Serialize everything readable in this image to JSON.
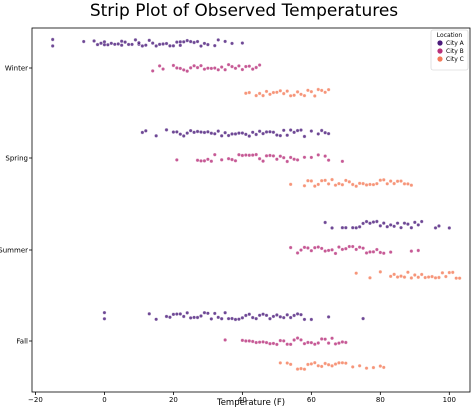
{
  "chart_data": {
    "type": "scatter",
    "subtype": "strip",
    "title": "Strip Plot of Observed Temperatures",
    "xlabel": "Temperature (F)",
    "ylabel": "",
    "xlim": [
      -21,
      106
    ],
    "xticks": [
      -20,
      0,
      20,
      40,
      60,
      80,
      100
    ],
    "categories": [
      "Winter",
      "Spring",
      "Summer",
      "Fall"
    ],
    "legend": {
      "title": "Location",
      "position": "top-right",
      "entries": [
        "City A",
        "City B",
        "City C"
      ]
    },
    "colors": {
      "City A": "#4a1a7a",
      "City B": "#b8307a",
      "City C": "#f47a58"
    },
    "series": [
      {
        "name": "City A",
        "points": {
          "Winter": [
            -15,
            -15,
            -6,
            -3,
            -2,
            -1,
            0,
            0,
            1,
            2,
            3,
            4,
            5,
            5,
            6,
            7,
            8,
            9,
            10,
            10,
            11,
            12,
            13,
            14,
            15,
            16,
            17,
            18,
            19,
            20,
            21,
            22,
            22,
            23,
            24,
            25,
            26,
            27,
            28,
            29,
            30,
            32,
            33,
            35,
            37,
            40
          ],
          "Spring": [
            11,
            12,
            15,
            18,
            20,
            21,
            22,
            23,
            24,
            25,
            26,
            27,
            28,
            29,
            30,
            31,
            32,
            33,
            34,
            35,
            36,
            37,
            38,
            39,
            40,
            41,
            42,
            43,
            44,
            45,
            46,
            47,
            48,
            49,
            50,
            51,
            52,
            53,
            54,
            55,
            56,
            57,
            58,
            60,
            62,
            63,
            64,
            65
          ],
          "Summer": [
            64,
            66,
            69,
            70,
            72,
            73,
            74,
            75,
            76,
            77,
            78,
            79,
            80,
            81,
            82,
            83,
            84,
            85,
            86,
            87,
            88,
            89,
            90,
            91,
            92,
            96,
            97,
            100
          ],
          "Fall": [
            0,
            0,
            13,
            15,
            18,
            19,
            20,
            21,
            22,
            23,
            24,
            25,
            26,
            27,
            28,
            29,
            30,
            31,
            32,
            33,
            34,
            35,
            36,
            37,
            38,
            39,
            40,
            41,
            42,
            43,
            44,
            45,
            46,
            47,
            48,
            49,
            50,
            51,
            52,
            53,
            54,
            55,
            56,
            57,
            58,
            60,
            65,
            75
          ]
        }
      },
      {
        "name": "City B",
        "points": {
          "Winter": [
            14,
            16,
            17,
            20,
            21,
            22,
            23,
            24,
            25,
            26,
            27,
            28,
            29,
            30,
            31,
            32,
            33,
            34,
            35,
            36,
            37,
            38,
            39,
            40,
            41,
            42,
            43,
            44,
            45
          ],
          "Spring": [
            21,
            27,
            28,
            29,
            30,
            31,
            32,
            34,
            36,
            37,
            38,
            39,
            40,
            41,
            42,
            43,
            44,
            45,
            46,
            47,
            48,
            49,
            50,
            51,
            52,
            53,
            54,
            55,
            56,
            58,
            60,
            62,
            64,
            65,
            69
          ],
          "Summer": [
            54,
            56,
            57,
            58,
            59,
            60,
            61,
            62,
            63,
            64,
            65,
            66,
            67,
            68,
            69,
            70,
            71,
            72,
            73,
            74,
            75,
            76,
            77,
            78,
            79,
            80,
            81,
            83,
            89,
            91
          ],
          "Fall": [
            35,
            40,
            41,
            42,
            43,
            44,
            45,
            46,
            47,
            48,
            49,
            50,
            51,
            52,
            53,
            54,
            55,
            56,
            57,
            58,
            59,
            60,
            61,
            62,
            63,
            64,
            65,
            66,
            67,
            68,
            69,
            70
          ]
        }
      },
      {
        "name": "City C",
        "points": {
          "Winter": [
            41,
            42,
            44,
            45,
            46,
            47,
            48,
            49,
            50,
            51,
            52,
            53,
            54,
            55,
            56,
            57,
            58,
            59,
            60,
            61,
            62,
            63,
            64,
            65
          ],
          "Spring": [
            54,
            58,
            59,
            60,
            61,
            62,
            63,
            64,
            65,
            66,
            67,
            68,
            69,
            70,
            71,
            72,
            73,
            74,
            75,
            76,
            77,
            78,
            79,
            80,
            81,
            82,
            83,
            84,
            85,
            86,
            87,
            88,
            89
          ],
          "Summer": [
            73,
            77,
            80,
            83,
            84,
            85,
            86,
            87,
            88,
            89,
            90,
            91,
            92,
            93,
            94,
            95,
            96,
            97,
            98,
            99,
            100,
            101,
            102,
            103
          ],
          "Fall": [
            51,
            53,
            54,
            56,
            57,
            58,
            59,
            60,
            61,
            62,
            63,
            64,
            65,
            66,
            67,
            68,
            69,
            70,
            72,
            74,
            76,
            78,
            80,
            81
          ]
        }
      }
    ]
  }
}
